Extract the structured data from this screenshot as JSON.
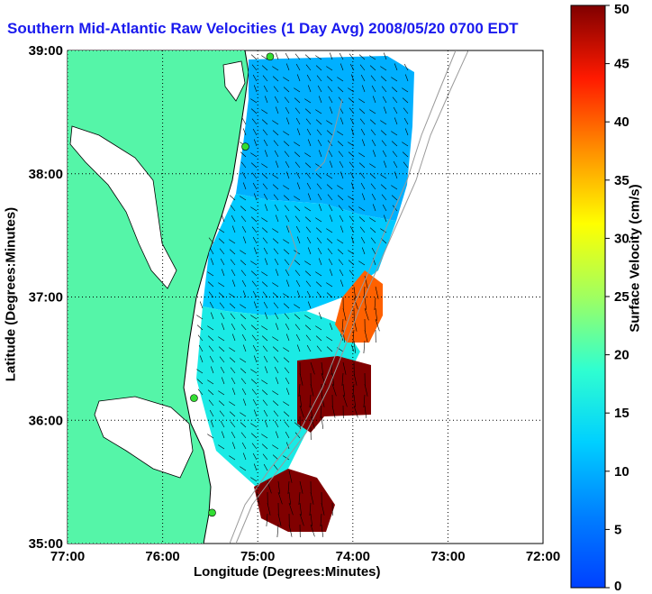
{
  "title": "Southern Mid-Atlantic Raw Velocities (1 Day Avg) 2008/05/20 0700 EDT",
  "xlabel": "Longitude (Degrees:Minutes)",
  "ylabel": "Latitude (Degrees:Minutes)",
  "colorbar_label": "Surface Velocity (cm/s)",
  "colors": {
    "land": "#55f5a8",
    "ocean": "#ffffff",
    "title": "#1a1aee",
    "station": "#33dd33",
    "bathymetry": "#999999"
  },
  "chart_data": {
    "type": "heatmap",
    "projection": "lon-lat",
    "xlim": [
      -77.0,
      -72.0
    ],
    "ylim": [
      35.0,
      39.0
    ],
    "x_ticks": [
      "77:00",
      "76:00",
      "75:00",
      "74:00",
      "73:00",
      "72:00"
    ],
    "y_ticks": [
      "39:00",
      "38:00",
      "37:00",
      "36:00",
      "35:00"
    ],
    "x_tick_values": [
      -77,
      -76,
      -75,
      -74,
      -73,
      -72
    ],
    "y_tick_values": [
      39,
      38,
      37,
      36,
      35
    ],
    "grid": "dotted",
    "colorbar": {
      "range": [
        0,
        50
      ],
      "ticks": [
        "0",
        "5",
        "10",
        "15",
        "20",
        "25",
        "30",
        "35",
        "40",
        "45",
        "50"
      ],
      "colormap": "jet"
    },
    "stations": [
      {
        "lon": -74.87,
        "lat": 38.95
      },
      {
        "lon": -75.13,
        "lat": 38.22
      },
      {
        "lon": -75.67,
        "lat": 36.18
      },
      {
        "lon": -75.48,
        "lat": 35.25
      }
    ],
    "speed_regions": [
      {
        "name": "northern-field",
        "speed": 10
      },
      {
        "name": "central-field",
        "speed": 12
      },
      {
        "name": "southern-field",
        "speed": 16
      },
      {
        "name": "gulf-stream-north",
        "speed": 40
      },
      {
        "name": "gulf-stream-core",
        "speed": 50
      },
      {
        "name": "gulf-stream-south",
        "speed": 50
      }
    ]
  }
}
